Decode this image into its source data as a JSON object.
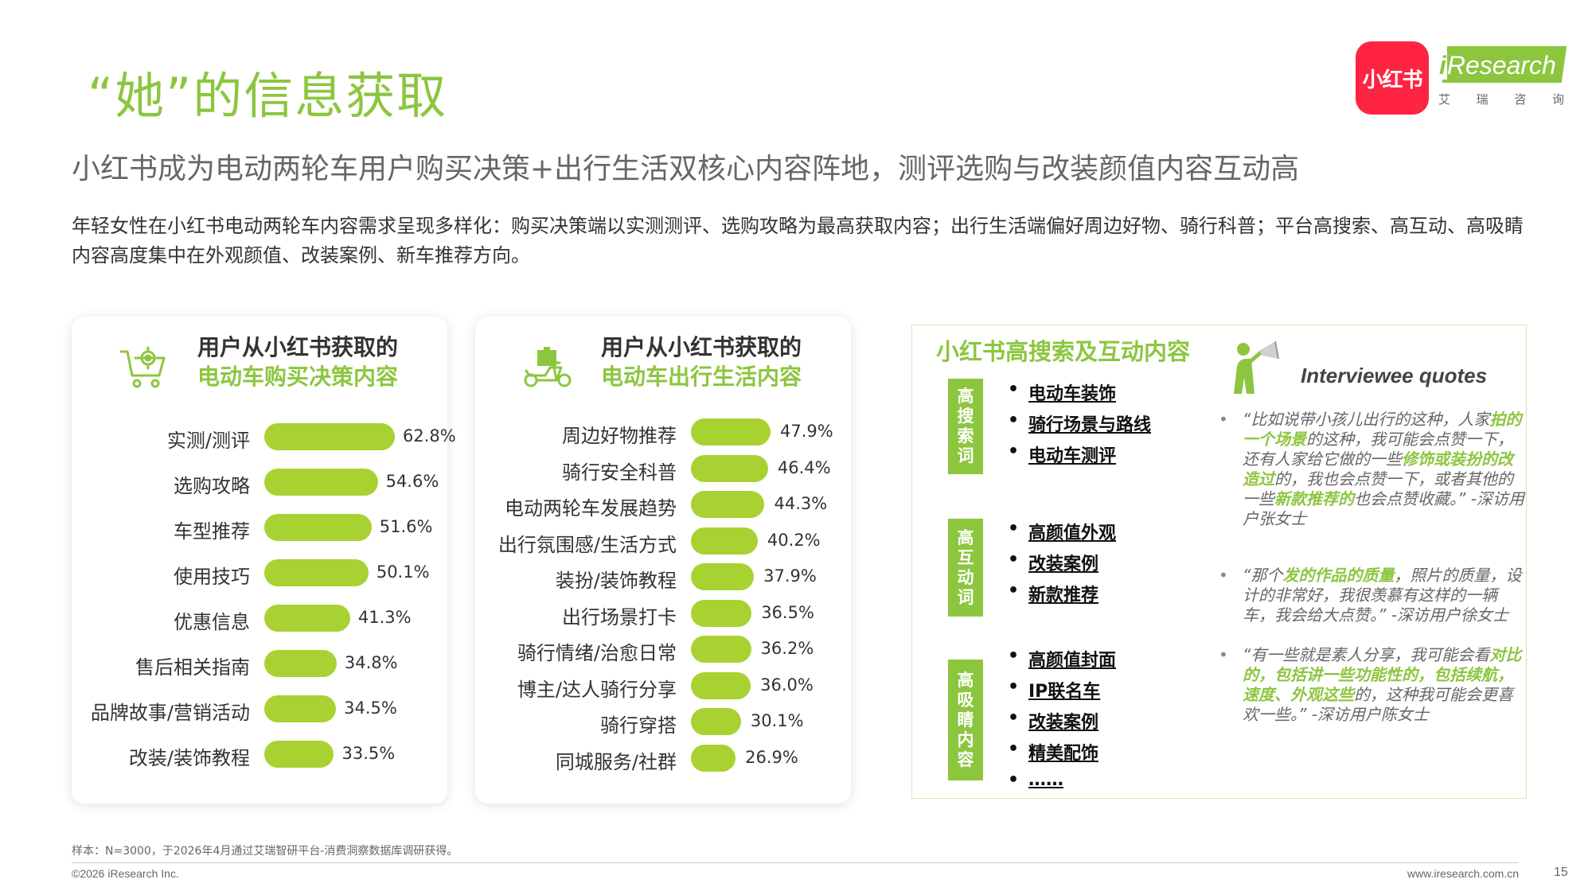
{
  "header": {
    "title": "“她”的信息获取",
    "subtitle": "小红书成为电动两轮车用户购买决策+出行生活双核心内容阵地，测评选购与改装颜值内容互动高",
    "description": "年轻女性在小红书电动两轮车内容需求呈现多样化：购买决策端以实测测评、选购攻略为最高获取内容；出行生活端偏好周边好物、骑行科普；平台高搜索、高互动、高吸睛内容高度集中在外观颜值、改装案例、新车推荐方向。"
  },
  "logos": {
    "xiaohongshu": "小红书",
    "iresearch_i": "i",
    "iresearch_name": "Research",
    "iresearch_cn": [
      "艾",
      "瑞",
      "咨",
      "询"
    ]
  },
  "brand_colors": {
    "accent": "#8cc63f",
    "bar": "#a8d231",
    "xiaohongshu": "#ff2442"
  },
  "chart_data": [
    {
      "type": "bar",
      "orientation": "horizontal",
      "title_line1": "用户从小红书获取的",
      "title_line2": "电动车购买决策内容",
      "icon": "shopping-cart-gear-icon",
      "unit": "%",
      "xlim": [
        0,
        62.8
      ],
      "categories": [
        "实测/测评",
        "选购攻略",
        "车型推荐",
        "使用技巧",
        "优惠信息",
        "售后相关指南",
        "品牌故事/营销活动",
        "改装/装饰教程"
      ],
      "values": [
        62.8,
        54.6,
        51.6,
        50.1,
        41.3,
        34.8,
        34.5,
        33.5
      ],
      "labels": [
        "62.8%",
        "54.6%",
        "51.6%",
        "50.1%",
        "41.3%",
        "34.8%",
        "34.5%",
        "33.5%"
      ]
    },
    {
      "type": "bar",
      "orientation": "horizontal",
      "title_line1": "用户从小红书获取的",
      "title_line2": "电动车出行生活内容",
      "icon": "scooter-delivery-icon",
      "unit": "%",
      "xlim": [
        0,
        47.9
      ],
      "categories": [
        "周边好物推荐",
        "骑行安全科普",
        "电动两轮车发展趋势",
        "出行氛围感/生活方式",
        "装扮/装饰教程",
        "出行场景打卡",
        "骑行情绪/治愈日常",
        "博主/达人骑行分享",
        "骑行穿搭",
        "同城服务/社群"
      ],
      "values": [
        47.9,
        46.4,
        44.3,
        40.2,
        37.9,
        36.5,
        36.2,
        36.0,
        30.1,
        26.9
      ],
      "labels": [
        "47.9%",
        "46.4%",
        "44.3%",
        "40.2%",
        "37.9%",
        "36.5%",
        "36.2%",
        "36.0%",
        "30.1%",
        "26.9%"
      ]
    }
  ],
  "panel": {
    "title": "小红书高搜索及互动内容",
    "groups": [
      {
        "tag": [
          "高",
          "搜",
          "索",
          "词"
        ],
        "items": [
          "电动车装饰",
          "骑行场景与路线",
          "电动车测评"
        ]
      },
      {
        "tag": [
          "高",
          "互",
          "动",
          "词"
        ],
        "items": [
          "高颜值外观",
          "改装案例",
          "新款推荐"
        ]
      },
      {
        "tag": [
          "高",
          "吸",
          "睛",
          "内",
          "容"
        ],
        "items": [
          "高颜值封面",
          "IP联名车",
          "改装案例",
          "精美配饰",
          "……"
        ]
      }
    ],
    "quotes_title": "Interviewee quotes",
    "quotes": [
      {
        "bullet": "•",
        "segments": [
          {
            "text": "“比如说带小孩儿出行的这种，人家",
            "hl": false
          },
          {
            "text": "拍的一个场景",
            "hl": true
          },
          {
            "text": "的这种，我可能会点赞一下，还有人家给它做的一些",
            "hl": false
          },
          {
            "text": "修饰或装扮的改造过",
            "hl": true
          },
          {
            "text": "的，我也会点赞一下，或者其他的一些",
            "hl": false
          },
          {
            "text": "新款推荐的",
            "hl": true
          },
          {
            "text": "也会点赞收藏。” -深访用户张女士",
            "hl": false
          }
        ]
      },
      {
        "bullet": "•",
        "segments": [
          {
            "text": "“那个",
            "hl": false
          },
          {
            "text": "发的作品的质量",
            "hl": true
          },
          {
            "text": "，照片的质量，设计的非常好，我很羡慕有这样的一辆车，我会给大点赞。” -深访用户徐女士",
            "hl": false
          }
        ]
      },
      {
        "bullet": "•",
        "segments": [
          {
            "text": "“有一些就是素人分享，我可能会看",
            "hl": false
          },
          {
            "text": "对比的，包括讲一些功能性的，包括续航，速度、外观这些",
            "hl": true
          },
          {
            "text": "的，这种我可能会更喜欢一些。” -深访用户陈女士",
            "hl": false
          }
        ]
      }
    ]
  },
  "footer": {
    "source": "样本：N=3000，于2026年4月通过艾瑞智研平台-消费洞察数据库调研获得。",
    "copyright": "©2026 iResearch Inc.",
    "website": "www.iresearch.com.cn",
    "page": "15"
  }
}
